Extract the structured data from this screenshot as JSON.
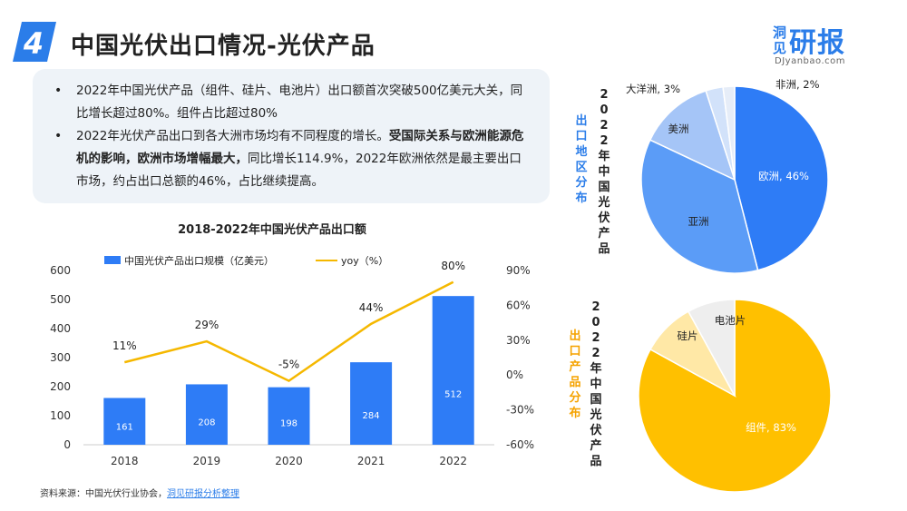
{
  "header": {
    "badge_number": "4",
    "title": "中国光伏出口情况-光伏产品"
  },
  "logo": {
    "left_text": "洞见",
    "main_text": "研报",
    "sub_text": "DJyanbao.com"
  },
  "summary": {
    "bullet1": "2022年中国光伏产品（组件、硅片、电池片）出口额首次突破500亿美元大关，同比增长超过80%。组件占比超过80%",
    "bullet2_part1": "2022年光伏产品出口到各大洲市场均有不同程度的增长。",
    "bullet2_bold": "受国际关系与欧洲能源危机的影响，欧洲市场增幅最大，",
    "bullet2_part2": "同比增长114.9%，2022年欧洲依然是最主要出口市场，约占出口总额的46%，占比继续提高。"
  },
  "source": {
    "prefix": "资料来源：中国光伏行业协会，",
    "highlight": "洞见研报分析整理"
  },
  "colors": {
    "brand_blue": "#2b7de9",
    "bar_blue": "#2e7cf6",
    "line_yellow": "#f5b800",
    "europe": "#2e7cf6",
    "asia": "#5b9cf7",
    "america": "#a5c5f7",
    "oceania": "#d2e2fa",
    "africa": "#e6edf8",
    "module": "#ffc000",
    "wafer": "#ffe8a6",
    "cell": "#eeeeee"
  },
  "chart_data": [
    {
      "type": "bar",
      "title": "2018-2022年中国光伏产品出口额",
      "categories": [
        "2018",
        "2019",
        "2020",
        "2021",
        "2022"
      ],
      "series": [
        {
          "name": "中国光伏产品出口规模（亿美元）",
          "type": "bar",
          "axis": "left",
          "values": [
            161,
            208,
            198,
            284,
            512
          ]
        },
        {
          "name": "yoy（%）",
          "type": "line",
          "axis": "right",
          "values": [
            11,
            29,
            -5,
            44,
            80
          ],
          "labels": [
            "11%",
            "29%",
            "-5%",
            "44%",
            "80%"
          ]
        }
      ],
      "ylim": [
        0,
        600
      ],
      "yticks": [
        "0",
        "100",
        "200",
        "300",
        "400",
        "500",
        "600"
      ],
      "y2lim": [
        -60,
        90
      ],
      "y2ticks": [
        "-60%",
        "-30%",
        "0%",
        "30%",
        "60%",
        "90%"
      ],
      "legend": "top"
    },
    {
      "type": "pie",
      "title": "2022年中国光伏产品出口地区分布",
      "title_left": "出口地区分布",
      "title_right": "2022年中国光伏产品",
      "slices": [
        {
          "name": "欧洲",
          "value": 46,
          "label": "欧洲, 46%"
        },
        {
          "name": "亚洲",
          "value": 36,
          "label": "亚洲"
        },
        {
          "name": "美洲",
          "value": 13,
          "label": "美洲"
        },
        {
          "name": "大洋洲",
          "value": 3,
          "label": "大洋洲, 3%"
        },
        {
          "name": "非洲",
          "value": 2,
          "label": "非洲, 2%"
        }
      ]
    },
    {
      "type": "pie",
      "title": "2022年中国光伏产品出口产品分布",
      "title_left": "出口产品分布",
      "title_right": "2022年中国光伏产品",
      "slices": [
        {
          "name": "组件",
          "value": 83,
          "label": "组件, 83%"
        },
        {
          "name": "硅片",
          "value": 9,
          "label": "硅片"
        },
        {
          "name": "电池片",
          "value": 8,
          "label": "电池片"
        }
      ]
    }
  ]
}
